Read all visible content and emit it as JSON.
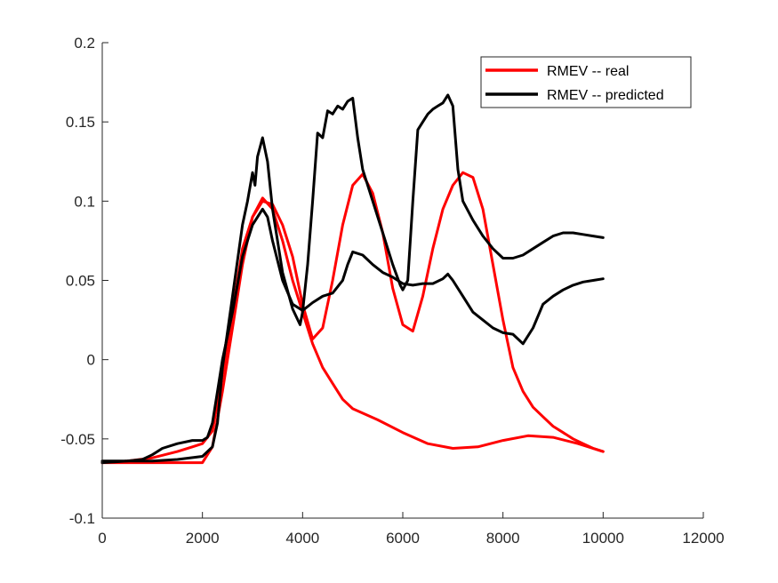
{
  "chart_data": {
    "type": "line",
    "xlim": [
      0,
      12000
    ],
    "ylim": [
      -0.1,
      0.2
    ],
    "x_ticks": [
      0,
      2000,
      4000,
      6000,
      8000,
      10000,
      12000
    ],
    "y_ticks": [
      -0.1,
      -0.05,
      0,
      0.05,
      0.1,
      0.15,
      0.2
    ],
    "x_tick_labels": [
      "0",
      "2000",
      "4000",
      "6000",
      "8000",
      "10000",
      "12000"
    ],
    "y_tick_labels": [
      "-0.1",
      "-0.05",
      "0",
      "0.05",
      "0.1",
      "0.15",
      "0.2"
    ],
    "grid": false,
    "legend_position": "top-right",
    "legend": [
      {
        "label": "RMEV -- real",
        "color": "#ff0000"
      },
      {
        "label": "RMEV -- predicted",
        "color": "#000000"
      }
    ],
    "series": [
      {
        "legend": "RMEV -- real",
        "color": "#ff0000",
        "x": [
          0,
          500,
          1000,
          1500,
          2000,
          2200,
          2400,
          2600,
          2800,
          3000,
          3200,
          3400,
          3600,
          3800,
          4000,
          4200,
          4400,
          4600,
          4800,
          5000,
          5200,
          5400,
          5600,
          5800,
          6000,
          6200,
          6400,
          6600,
          6800,
          7000,
          7200,
          7400,
          7600,
          7800,
          8000,
          8200,
          8400,
          8600,
          8800,
          9000,
          9200,
          9400,
          9600,
          9800,
          10000
        ],
        "y": [
          -0.065,
          -0.065,
          -0.065,
          -0.065,
          -0.065,
          -0.055,
          -0.02,
          0.02,
          0.06,
          0.09,
          0.1,
          0.098,
          0.085,
          0.065,
          0.035,
          0.013,
          0.02,
          0.05,
          0.085,
          0.11,
          0.117,
          0.105,
          0.08,
          0.045,
          0.022,
          0.018,
          0.04,
          0.07,
          0.095,
          0.11,
          0.118,
          0.115,
          0.095,
          0.06,
          0.025,
          -0.005,
          -0.02,
          -0.03,
          -0.036,
          -0.042,
          -0.046,
          -0.05,
          -0.053,
          -0.056,
          -0.058
        ]
      },
      {
        "legend": "",
        "color": "#ff0000",
        "x": [
          0,
          500,
          1000,
          1500,
          1800,
          2000,
          2200,
          2400,
          2600,
          2800,
          3000,
          3200,
          3400,
          3600,
          3800,
          4000,
          4200,
          4400,
          4600,
          4800,
          5000,
          5500,
          6000,
          6500,
          7000,
          7500,
          8000,
          8500,
          9000,
          9500,
          10000
        ],
        "y": [
          -0.065,
          -0.064,
          -0.062,
          -0.058,
          -0.055,
          -0.053,
          -0.045,
          -0.01,
          0.03,
          0.07,
          0.09,
          0.102,
          0.095,
          0.075,
          0.05,
          0.03,
          0.01,
          -0.005,
          -0.015,
          -0.025,
          -0.031,
          -0.038,
          -0.046,
          -0.053,
          -0.056,
          -0.055,
          -0.051,
          -0.048,
          -0.049,
          -0.053,
          -0.058
        ]
      },
      {
        "legend": "RMEV -- predicted",
        "color": "#000000",
        "x": [
          0,
          500,
          1000,
          1500,
          2000,
          2200,
          2300,
          2400,
          2600,
          2800,
          2900,
          3000,
          3050,
          3100,
          3200,
          3300,
          3400,
          3600,
          3800,
          3950,
          4000,
          4100,
          4200,
          4300,
          4400,
          4500,
          4600,
          4700,
          4800,
          4900,
          5000,
          5100,
          5200,
          5400,
          5600,
          5800,
          5950,
          6000,
          6100,
          6200,
          6300,
          6400,
          6500,
          6600,
          6700,
          6800,
          6900,
          7000,
          7100,
          7200,
          7400,
          7600,
          7800,
          8000,
          8200,
          8400,
          8600,
          8800,
          9000,
          9200,
          9400,
          9600,
          9800,
          10000
        ],
        "y": [
          -0.064,
          -0.064,
          -0.064,
          -0.063,
          -0.061,
          -0.055,
          -0.04,
          -0.005,
          0.04,
          0.085,
          0.1,
          0.118,
          0.11,
          0.128,
          0.14,
          0.125,
          0.095,
          0.055,
          0.032,
          0.022,
          0.03,
          0.06,
          0.1,
          0.143,
          0.14,
          0.157,
          0.155,
          0.16,
          0.158,
          0.163,
          0.165,
          0.14,
          0.12,
          0.1,
          0.08,
          0.06,
          0.047,
          0.044,
          0.05,
          0.1,
          0.145,
          0.15,
          0.155,
          0.158,
          0.16,
          0.162,
          0.167,
          0.16,
          0.12,
          0.1,
          0.088,
          0.078,
          0.07,
          0.064,
          0.064,
          0.066,
          0.07,
          0.074,
          0.078,
          0.08,
          0.08,
          0.079,
          0.078,
          0.077
        ]
      },
      {
        "legend": "",
        "color": "#000000",
        "x": [
          0,
          500,
          800,
          1000,
          1200,
          1500,
          1800,
          2000,
          2100,
          2200,
          2300,
          2400,
          2600,
          2800,
          3000,
          3200,
          3300,
          3400,
          3600,
          3800,
          4000,
          4200,
          4400,
          4600,
          4800,
          4900,
          5000,
          5200,
          5400,
          5600,
          5800,
          6000,
          6200,
          6400,
          6600,
          6800,
          6900,
          7000,
          7200,
          7400,
          7600,
          7800,
          8000,
          8200,
          8400,
          8600,
          8800,
          9000,
          9200,
          9400,
          9600,
          9800,
          10000
        ],
        "y": [
          -0.065,
          -0.064,
          -0.063,
          -0.06,
          -0.056,
          -0.053,
          -0.051,
          -0.051,
          -0.049,
          -0.04,
          -0.02,
          0.0,
          0.03,
          0.065,
          0.085,
          0.095,
          0.09,
          0.075,
          0.05,
          0.035,
          0.031,
          0.036,
          0.04,
          0.042,
          0.05,
          0.06,
          0.068,
          0.066,
          0.06,
          0.055,
          0.052,
          0.048,
          0.047,
          0.048,
          0.048,
          0.051,
          0.054,
          0.05,
          0.04,
          0.03,
          0.025,
          0.02,
          0.017,
          0.016,
          0.01,
          0.02,
          0.035,
          0.04,
          0.044,
          0.047,
          0.049,
          0.05,
          0.051
        ]
      }
    ]
  }
}
